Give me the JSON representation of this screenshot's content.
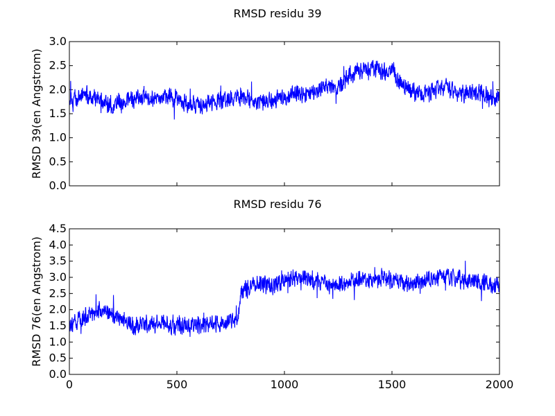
{
  "chart_data": [
    {
      "type": "line",
      "title": "RMSD residu 39",
      "xlabel": "",
      "ylabel": "RMSD 39(en Angstrom)",
      "xlim": [
        0,
        2000
      ],
      "ylim": [
        0.0,
        3.0
      ],
      "xticks": [
        0,
        500,
        1000,
        1500,
        2000
      ],
      "xtick_labels_visible": false,
      "yticks": [
        "0.0",
        "0.5",
        "1.0",
        "1.5",
        "2.0",
        "2.5",
        "3.0"
      ],
      "grid": false,
      "line_color": "#0000ff",
      "series": [
        {
          "x": [
            0,
            50,
            100,
            150,
            200,
            250,
            300,
            350,
            400,
            450,
            500,
            550,
            600,
            650,
            700,
            750,
            800,
            850,
            900,
            950,
            1000,
            1050,
            1100,
            1150,
            1200,
            1250,
            1300,
            1350,
            1400,
            1450,
            1500,
            1550,
            1600,
            1650,
            1700,
            1750,
            1800,
            1850,
            1900,
            1950,
            2000
          ],
          "values": [
            1.8,
            1.85,
            1.9,
            1.75,
            1.7,
            1.75,
            1.8,
            1.85,
            1.8,
            1.85,
            1.8,
            1.7,
            1.65,
            1.7,
            1.75,
            1.8,
            1.85,
            1.8,
            1.75,
            1.8,
            1.85,
            1.9,
            1.85,
            2.0,
            2.1,
            2.05,
            2.3,
            2.4,
            2.45,
            2.4,
            2.35,
            2.1,
            1.95,
            1.9,
            2.0,
            2.05,
            1.95,
            1.9,
            1.95,
            1.85,
            1.8
          ]
        }
      ]
    },
    {
      "type": "line",
      "title": "RMSD residu 76",
      "xlabel": "",
      "ylabel": "RMSD 76(en Angstrom)",
      "xlim": [
        0,
        2000
      ],
      "ylim": [
        0.0,
        4.5
      ],
      "xticks": [
        "0",
        "500",
        "1000",
        "1500",
        "2000"
      ],
      "yticks": [
        "0.0",
        "0.5",
        "1.0",
        "1.5",
        "2.0",
        "2.5",
        "3.0",
        "3.5",
        "4.0",
        "4.5"
      ],
      "grid": false,
      "line_color": "#0000ff",
      "series": [
        {
          "x": [
            0,
            50,
            100,
            150,
            200,
            250,
            300,
            350,
            400,
            450,
            500,
            550,
            600,
            650,
            700,
            750,
            780,
            800,
            850,
            900,
            950,
            1000,
            1050,
            1100,
            1150,
            1200,
            1250,
            1300,
            1350,
            1400,
            1450,
            1500,
            1550,
            1600,
            1650,
            1700,
            1750,
            1800,
            1850,
            1900,
            1950,
            2000
          ],
          "values": [
            1.6,
            1.7,
            1.85,
            2.0,
            1.9,
            1.7,
            1.5,
            1.55,
            1.6,
            1.55,
            1.5,
            1.55,
            1.5,
            1.6,
            1.55,
            1.65,
            1.7,
            2.6,
            2.7,
            2.8,
            2.75,
            2.9,
            3.0,
            2.95,
            2.9,
            2.8,
            2.75,
            2.85,
            2.95,
            2.9,
            3.0,
            2.9,
            2.85,
            2.8,
            2.9,
            3.0,
            3.05,
            2.95,
            2.9,
            2.85,
            2.8,
            2.7
          ]
        }
      ]
    }
  ]
}
